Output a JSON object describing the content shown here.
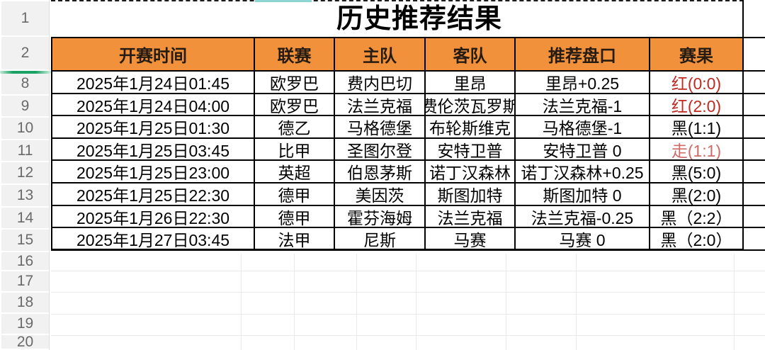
{
  "sheet": {
    "title": "历史推荐结果",
    "row_numbers": [
      "1",
      "2",
      "8",
      "9",
      "10",
      "11",
      "12",
      "13",
      "14",
      "15",
      "16",
      "17",
      "18",
      "19",
      "20"
    ],
    "hidden_rows_note": "rows 3-7 hidden"
  },
  "table": {
    "headers": [
      "开赛时间",
      "联赛",
      "主队",
      "客队",
      "推荐盘口",
      "赛果"
    ],
    "rows": [
      {
        "time": "2025年1月24日01:45",
        "league": "欧罗巴",
        "home": "费内巴切",
        "away": "里昂",
        "handicap": "里昂+0.25",
        "result": "红(0:0)",
        "result_color": "red"
      },
      {
        "time": "2025年1月24日04:00",
        "league": "欧罗巴",
        "home": "法兰克福",
        "away": "费伦茨瓦罗斯",
        "handicap": "法兰克福-1",
        "result": "红(2:0)",
        "result_color": "red"
      },
      {
        "time": "2025年1月25日01:30",
        "league": "德乙",
        "home": "马格德堡",
        "away": "布轮斯维克",
        "handicap": "马格德堡-1",
        "result": "黑(1:1)",
        "result_color": "black"
      },
      {
        "time": "2025年1月25日03:45",
        "league": "比甲",
        "home": "圣图尔登",
        "away": "安特卫普",
        "handicap": "安特卫普 0",
        "result": "走(1:1)",
        "result_color": "soft_red"
      },
      {
        "time": "2025年1月25日23:00",
        "league": "英超",
        "home": "伯恩茅斯",
        "away": "诺丁汉森林",
        "handicap": "诺丁汉森林+0.25",
        "result": "黑(5:0)",
        "result_color": "black"
      },
      {
        "time": "2025年1月25日22:30",
        "league": "德甲",
        "home": "美因茨",
        "away": "斯图加特",
        "handicap": "斯图加特 0",
        "result": "黑(2:0)",
        "result_color": "black"
      },
      {
        "time": "2025年1月26日22:30",
        "league": "德甲",
        "home": "霍芬海姆",
        "away": "法兰克福",
        "handicap": "法兰克福-0.25",
        "result": "黑（2:2）",
        "result_color": "black"
      },
      {
        "time": "2025年1月27日03:45",
        "league": "法甲",
        "home": "尼斯",
        "away": "马赛",
        "handicap": "马赛 0",
        "result": "黑（2:0）",
        "result_color": "black"
      }
    ]
  },
  "colors": {
    "header_bg": "#f2913b",
    "result_red": "#be2a22",
    "result_soft_red": "#cd6b69",
    "result_black": "#000000",
    "hidden_indicator_green": "#18a263"
  }
}
